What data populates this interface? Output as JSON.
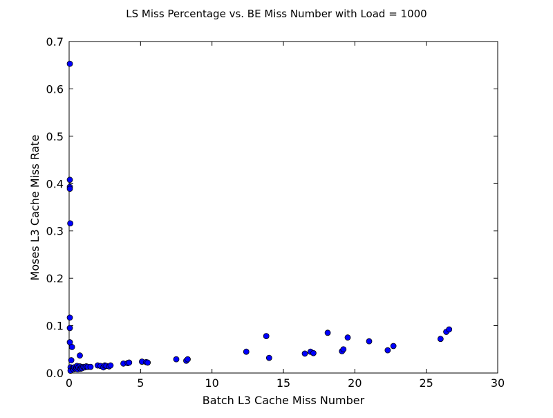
{
  "chart_data": {
    "type": "scatter",
    "title": "LS Miss Percentage vs. BE Miss Number with Load = 1000",
    "xlabel": "Batch L3 Cache Miss Number",
    "ylabel": "Moses L3 Cache Miss Rate",
    "xlim": [
      0,
      30
    ],
    "ylim": [
      0,
      0.7
    ],
    "xticks": [
      0,
      5,
      10,
      15,
      20,
      25,
      30
    ],
    "yticks": [
      0.0,
      0.1,
      0.2,
      0.3,
      0.4,
      0.5,
      0.6,
      0.7
    ],
    "xtick_labels": [
      "0",
      "5",
      "10",
      "15",
      "20",
      "25",
      "30"
    ],
    "ytick_labels": [
      "0.0",
      "0.1",
      "0.2",
      "0.3",
      "0.4",
      "0.5",
      "0.6",
      "0.7"
    ],
    "grid": false,
    "legend": "none",
    "marker_color": "#0000ff",
    "marker_edge_color": "#000000",
    "points": [
      [
        0.05,
        0.653
      ],
      [
        0.05,
        0.408
      ],
      [
        0.05,
        0.393
      ],
      [
        0.05,
        0.389
      ],
      [
        0.08,
        0.316
      ],
      [
        0.05,
        0.117
      ],
      [
        0.05,
        0.095
      ],
      [
        0.05,
        0.065
      ],
      [
        0.2,
        0.055
      ],
      [
        0.15,
        0.027
      ],
      [
        0.1,
        0.012
      ],
      [
        0.1,
        0.005
      ],
      [
        0.25,
        0.01
      ],
      [
        0.3,
        0.008
      ],
      [
        0.35,
        0.012
      ],
      [
        0.45,
        0.009
      ],
      [
        0.5,
        0.011
      ],
      [
        0.55,
        0.015
      ],
      [
        0.6,
        0.008
      ],
      [
        0.65,
        0.012
      ],
      [
        0.75,
        0.014
      ],
      [
        0.8,
        0.009
      ],
      [
        0.75,
        0.037
      ],
      [
        0.85,
        0.012
      ],
      [
        0.9,
        0.01
      ],
      [
        1.0,
        0.013
      ],
      [
        1.1,
        0.012
      ],
      [
        1.2,
        0.014
      ],
      [
        1.3,
        0.013
      ],
      [
        1.5,
        0.013
      ],
      [
        2.0,
        0.016
      ],
      [
        2.2,
        0.015
      ],
      [
        2.4,
        0.012
      ],
      [
        2.5,
        0.016
      ],
      [
        2.6,
        0.015
      ],
      [
        2.8,
        0.014
      ],
      [
        2.9,
        0.016
      ],
      [
        3.8,
        0.02
      ],
      [
        4.1,
        0.021
      ],
      [
        4.2,
        0.022
      ],
      [
        5.1,
        0.024
      ],
      [
        5.4,
        0.023
      ],
      [
        5.5,
        0.022
      ],
      [
        7.5,
        0.029
      ],
      [
        8.2,
        0.026
      ],
      [
        8.3,
        0.029
      ],
      [
        12.4,
        0.045
      ],
      [
        13.8,
        0.078
      ],
      [
        14.0,
        0.032
      ],
      [
        16.5,
        0.041
      ],
      [
        16.9,
        0.045
      ],
      [
        17.1,
        0.042
      ],
      [
        18.1,
        0.085
      ],
      [
        19.1,
        0.046
      ],
      [
        19.2,
        0.05
      ],
      [
        19.5,
        0.075
      ],
      [
        21.0,
        0.067
      ],
      [
        22.3,
        0.048
      ],
      [
        22.7,
        0.057
      ],
      [
        26.0,
        0.072
      ],
      [
        26.4,
        0.087
      ],
      [
        26.6,
        0.092
      ]
    ]
  }
}
